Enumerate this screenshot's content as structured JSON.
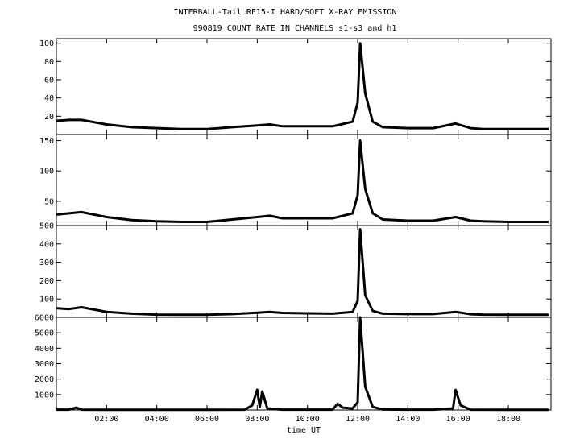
{
  "title": "INTERBALL-Tail RF15-I HARD/SOFT X-RAY EMISSION",
  "subtitle": "990819  COUNT RATE IN CHANNELS s1-s3 and h1",
  "chart_data": {
    "type": "line",
    "xlabel": "time UT",
    "xlim": [
      0.0,
      19.7
    ],
    "x_ticks": [
      2,
      4,
      6,
      8,
      10,
      12,
      14,
      16,
      18
    ],
    "x_tick_labels": [
      "02:00",
      "04:00",
      "06:00",
      "08:00",
      "10:00",
      "12:00",
      "14:00",
      "16:00",
      "18:00"
    ],
    "color": "#000000",
    "panels": [
      {
        "ylim": [
          0,
          105
        ],
        "y_ticks": [
          20,
          40,
          60,
          80,
          100
        ],
        "y_tick_labels": [
          "20",
          "40",
          "60",
          "80",
          "100"
        ],
        "x": [
          0.0,
          0.5,
          1.0,
          2.0,
          3.0,
          4.0,
          5.0,
          6.0,
          7.0,
          8.0,
          8.5,
          9.0,
          10.0,
          11.0,
          11.8,
          12.0,
          12.1,
          12.3,
          12.6,
          13.0,
          14.0,
          15.0,
          15.9,
          16.5,
          17.0,
          18.0,
          19.0,
          19.6
        ],
        "y": [
          15,
          16,
          16,
          11,
          8,
          7,
          6,
          6,
          8,
          10,
          11,
          9,
          9,
          9,
          14,
          35,
          100,
          45,
          14,
          8,
          7,
          7,
          12,
          7,
          6,
          6,
          6,
          6
        ]
      },
      {
        "ylim": [
          10,
          160
        ],
        "y_ticks": [
          50,
          100,
          150
        ],
        "y_tick_labels": [
          "50",
          "100",
          "150"
        ],
        "x": [
          0.0,
          0.5,
          1.0,
          2.0,
          3.0,
          4.0,
          5.0,
          6.0,
          7.0,
          8.0,
          8.5,
          9.0,
          10.0,
          11.0,
          11.8,
          12.0,
          12.1,
          12.3,
          12.6,
          13.0,
          14.0,
          15.0,
          15.9,
          16.5,
          17.0,
          18.0,
          19.0,
          19.6
        ],
        "y": [
          28,
          30,
          32,
          24,
          19,
          17,
          16,
          16,
          20,
          24,
          26,
          22,
          22,
          22,
          30,
          60,
          150,
          70,
          30,
          20,
          18,
          18,
          24,
          18,
          17,
          16,
          16,
          16
        ]
      },
      {
        "ylim": [
          0,
          500
        ],
        "y_ticks": [
          100,
          200,
          300,
          400,
          500
        ],
        "y_tick_labels": [
          "100",
          "200",
          "300",
          "400",
          "500"
        ],
        "x": [
          0.0,
          0.5,
          1.0,
          2.0,
          3.0,
          4.0,
          5.0,
          6.0,
          7.0,
          8.0,
          8.5,
          9.0,
          10.0,
          11.0,
          11.8,
          12.0,
          12.1,
          12.3,
          12.6,
          13.0,
          14.0,
          15.0,
          15.9,
          16.5,
          17.0,
          18.0,
          19.0,
          19.6
        ],
        "y": [
          50,
          45,
          55,
          30,
          20,
          15,
          14,
          14,
          18,
          25,
          30,
          24,
          22,
          20,
          30,
          90,
          480,
          120,
          35,
          20,
          18,
          18,
          30,
          17,
          15,
          14,
          14,
          14
        ]
      },
      {
        "ylim": [
          0,
          6000
        ],
        "y_ticks": [
          1000,
          2000,
          3000,
          4000,
          5000,
          6000
        ],
        "y_tick_labels": [
          "1000",
          "2000",
          "3000",
          "4000",
          "5000",
          "6000"
        ],
        "x": [
          0.0,
          0.5,
          0.8,
          1.0,
          2.0,
          4.0,
          6.0,
          7.5,
          7.8,
          8.0,
          8.1,
          8.2,
          8.4,
          9.0,
          10.0,
          11.0,
          11.2,
          11.4,
          11.8,
          12.0,
          12.1,
          12.3,
          12.6,
          13.0,
          14.0,
          15.0,
          15.8,
          15.9,
          16.1,
          16.5,
          18.0,
          19.6
        ],
        "y": [
          20,
          20,
          150,
          20,
          10,
          10,
          10,
          20,
          300,
          1300,
          200,
          1200,
          100,
          20,
          20,
          20,
          400,
          150,
          100,
          500,
          6000,
          1500,
          200,
          30,
          20,
          20,
          100,
          1300,
          300,
          20,
          10,
          10
        ]
      }
    ]
  }
}
